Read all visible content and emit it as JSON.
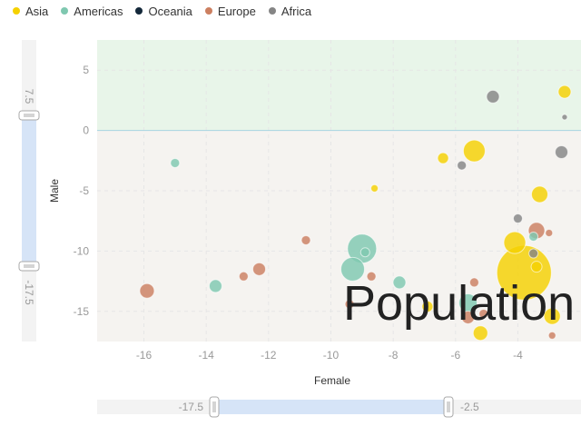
{
  "legend": [
    {
      "name": "Asia",
      "color": "#f5d100"
    },
    {
      "name": "Americas",
      "color": "#7fc8b0"
    },
    {
      "name": "Oceania",
      "color": "#14283a"
    },
    {
      "name": "Europe",
      "color": "#cc7f60"
    },
    {
      "name": "Africa",
      "color": "#858585"
    }
  ],
  "chart_data": {
    "type": "scatter",
    "title": "Population",
    "xlabel": "Female",
    "ylabel": "Male",
    "xlim": [
      -17.5,
      -2.5
    ],
    "ylim": [
      -17.5,
      7.5
    ],
    "xticks": [
      "-16",
      "-14",
      "-12",
      "-10",
      "-8",
      "-6",
      "-4"
    ],
    "yticks": [
      "5",
      "0",
      "-5",
      "-10",
      "-15"
    ],
    "x_zoom": {
      "start": "-17.5",
      "end": "-2.5"
    },
    "y_zoom": {
      "start": "7.5",
      "end": "-17.5"
    },
    "background_bands": [
      {
        "from": 0,
        "to": 7.5,
        "color": "#e8f5e9"
      },
      {
        "from": -17.5,
        "to": 0,
        "color": "#f5f3f0"
      }
    ],
    "series": [
      {
        "name": "Asia",
        "points": [
          {
            "x": -5.4,
            "y": -1.7,
            "size": 12
          },
          {
            "x": -6.4,
            "y": -2.3,
            "size": 6
          },
          {
            "x": -8.6,
            "y": -4.8,
            "size": 4
          },
          {
            "x": -3.3,
            "y": -5.3,
            "size": 9
          },
          {
            "x": -4.1,
            "y": -9.3,
            "size": 12
          },
          {
            "x": -3.8,
            "y": -11.8,
            "size": 30
          },
          {
            "x": -3.4,
            "y": -11.3,
            "size": 6
          },
          {
            "x": -6.9,
            "y": -14.6,
            "size": 6
          },
          {
            "x": -2.9,
            "y": -15.4,
            "size": 9
          },
          {
            "x": -5.2,
            "y": -16.8,
            "size": 8
          },
          {
            "x": -2.5,
            "y": 3.2,
            "size": 7
          }
        ]
      },
      {
        "name": "Americas",
        "points": [
          {
            "x": -15.0,
            "y": -2.7,
            "size": 5
          },
          {
            "x": -9.0,
            "y": -9.8,
            "size": 16
          },
          {
            "x": -8.9,
            "y": -10.1,
            "size": 5
          },
          {
            "x": -9.3,
            "y": -11.5,
            "size": 13
          },
          {
            "x": -7.8,
            "y": -12.6,
            "size": 7
          },
          {
            "x": -13.7,
            "y": -12.9,
            "size": 7
          },
          {
            "x": -5.6,
            "y": -14.3,
            "size": 10
          },
          {
            "x": -3.5,
            "y": -8.8,
            "size": 5
          }
        ]
      },
      {
        "name": "Europe",
        "points": [
          {
            "x": -10.8,
            "y": -9.1,
            "size": 5
          },
          {
            "x": -12.3,
            "y": -11.5,
            "size": 7
          },
          {
            "x": -12.8,
            "y": -12.1,
            "size": 5
          },
          {
            "x": -8.7,
            "y": -12.1,
            "size": 5
          },
          {
            "x": -15.9,
            "y": -13.3,
            "size": 8
          },
          {
            "x": -9.4,
            "y": -14.4,
            "size": 5
          },
          {
            "x": -5.4,
            "y": -12.6,
            "size": 5
          },
          {
            "x": -3.4,
            "y": -8.3,
            "size": 9
          },
          {
            "x": -3.0,
            "y": -8.5,
            "size": 4
          },
          {
            "x": -5.6,
            "y": -15.5,
            "size": 7
          },
          {
            "x": -5.1,
            "y": -15.2,
            "size": 5
          },
          {
            "x": -2.9,
            "y": -17.0,
            "size": 4
          }
        ]
      },
      {
        "name": "Africa",
        "points": [
          {
            "x": -4.8,
            "y": 2.8,
            "size": 7
          },
          {
            "x": -5.8,
            "y": -2.9,
            "size": 5
          },
          {
            "x": -2.6,
            "y": -1.8,
            "size": 7
          },
          {
            "x": -4.0,
            "y": -7.3,
            "size": 5
          },
          {
            "x": -3.5,
            "y": -10.2,
            "size": 5
          },
          {
            "x": -2.5,
            "y": 1.1,
            "size": 3
          }
        ]
      }
    ]
  }
}
